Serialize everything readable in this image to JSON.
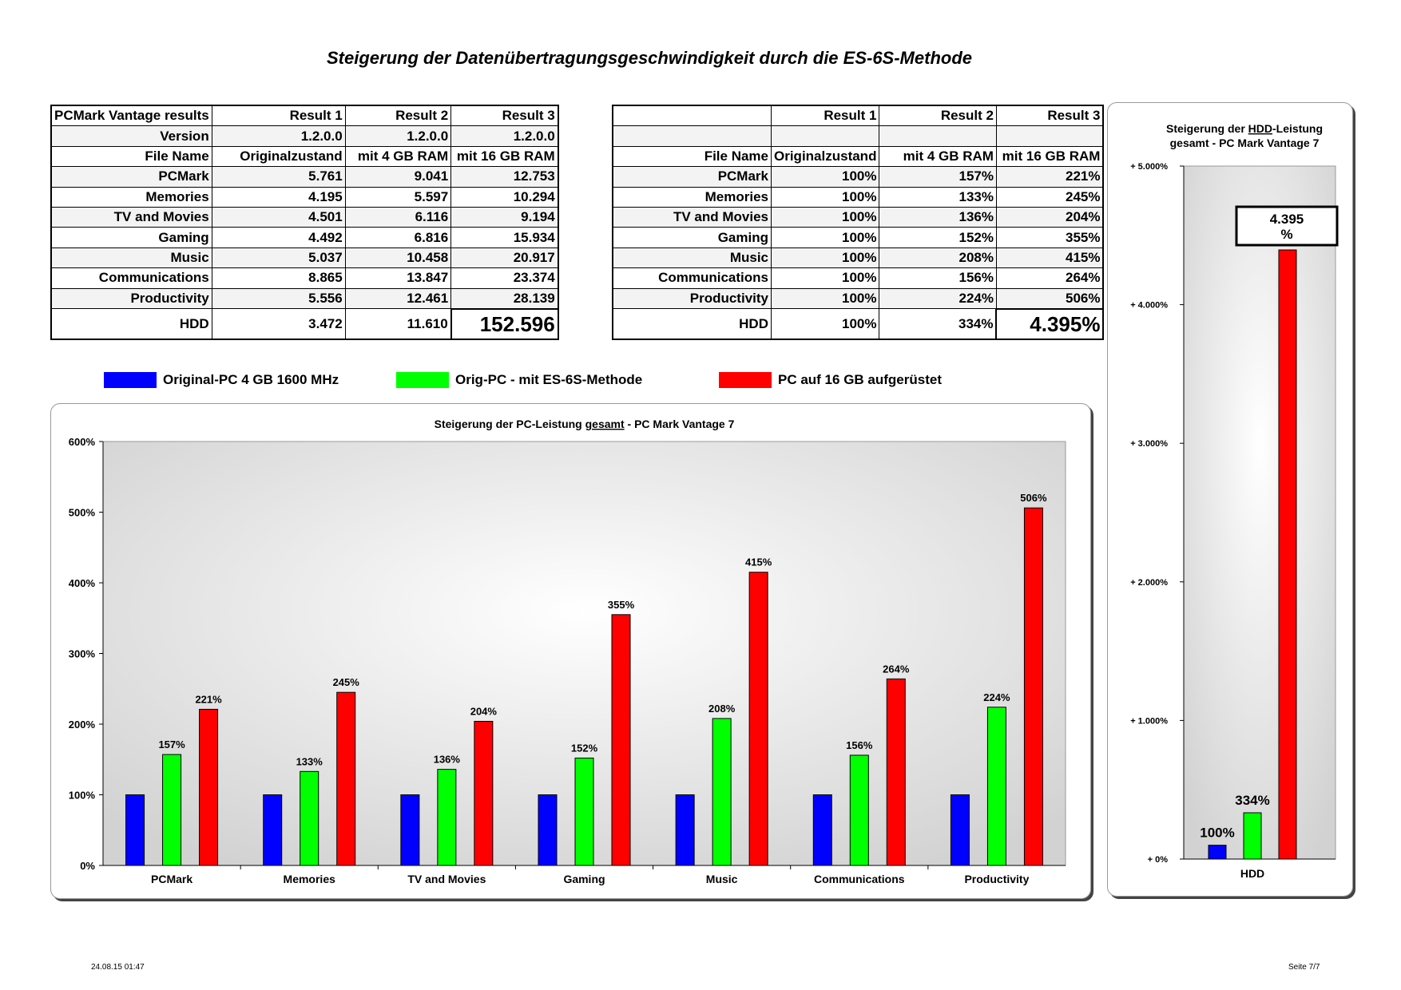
{
  "page_title": "Steigerung der Datenübertragungsgeschwindigkeit durch die ES-6S-Methode",
  "table_abs": {
    "header": [
      "PCMark Vantage results",
      "Result 1",
      "Result 2",
      "Result 3"
    ],
    "rows": [
      [
        "Version",
        "1.2.0.0",
        "1.2.0.0",
        "1.2.0.0"
      ],
      [
        "File Name",
        "Originalzustand",
        "mit 4 GB RAM",
        "mit 16 GB RAM"
      ],
      [
        "PCMark",
        "5.761",
        "9.041",
        "12.753"
      ],
      [
        "Memories",
        "4.195",
        "5.597",
        "10.294"
      ],
      [
        "TV and Movies",
        "4.501",
        "6.116",
        "9.194"
      ],
      [
        "Gaming",
        "4.492",
        "6.816",
        "15.934"
      ],
      [
        "Music",
        "5.037",
        "10.458",
        "20.917"
      ],
      [
        "Communications",
        "8.865",
        "13.847",
        "23.374"
      ],
      [
        "Productivity",
        "5.556",
        "12.461",
        "28.139"
      ],
      [
        "HDD",
        "3.472",
        "11.610",
        "152.596"
      ]
    ]
  },
  "table_pct": {
    "header": [
      "",
      "Result 1",
      "Result 2",
      "Result 3"
    ],
    "rows": [
      [
        "",
        "",
        "",
        ""
      ],
      [
        "File Name",
        "Originalzustand",
        "mit 4 GB RAM",
        "mit 16 GB RAM"
      ],
      [
        "PCMark",
        "100%",
        "157%",
        "221%"
      ],
      [
        "Memories",
        "100%",
        "133%",
        "245%"
      ],
      [
        "TV and Movies",
        "100%",
        "136%",
        "204%"
      ],
      [
        "Gaming",
        "100%",
        "152%",
        "355%"
      ],
      [
        "Music",
        "100%",
        "208%",
        "415%"
      ],
      [
        "Communications",
        "100%",
        "156%",
        "264%"
      ],
      [
        "Productivity",
        "100%",
        "224%",
        "506%"
      ],
      [
        "HDD",
        "100%",
        "334%",
        "4.395%"
      ]
    ]
  },
  "legend": [
    {
      "label": "Original-PC 4 GB 1600 MHz",
      "color": "#0000ff"
    },
    {
      "label": "Orig-PC - mit ES-6S-Methode",
      "color": "#00ff00"
    },
    {
      "label": "PC auf 16 GB aufgerüstet",
      "color": "#ff0000"
    }
  ],
  "chart_data": [
    {
      "type": "bar",
      "title_parts": [
        "Steigerung der PC-Leistung ",
        "gesamt",
        " - PC Mark Vantage 7"
      ],
      "categories": [
        "PCMark",
        "Memories",
        "TV and Movies",
        "Gaming",
        "Music",
        "Communications",
        "Productivity"
      ],
      "series": [
        {
          "name": "Original-PC 4 GB 1600 MHz",
          "color": "#0000ff",
          "values": [
            100,
            100,
            100,
            100,
            100,
            100,
            100
          ],
          "labels": [
            "",
            "",
            "",
            "",
            "",
            "",
            ""
          ]
        },
        {
          "name": "Orig-PC - mit ES-6S-Methode",
          "color": "#00ff00",
          "values": [
            157,
            133,
            136,
            152,
            208,
            156,
            224
          ],
          "labels": [
            "157%",
            "133%",
            "136%",
            "152%",
            "208%",
            "156%",
            "224%"
          ]
        },
        {
          "name": "PC auf 16 GB aufgerüstet",
          "color": "#ff0000",
          "values": [
            221,
            245,
            204,
            355,
            415,
            264,
            506
          ],
          "labels": [
            "221%",
            "245%",
            "204%",
            "355%",
            "415%",
            "264%",
            "506%"
          ]
        }
      ],
      "ylim": [
        0,
        600
      ],
      "yticks": [
        0,
        100,
        200,
        300,
        400,
        500,
        600
      ],
      "ytick_labels": [
        "0%",
        "100%",
        "200%",
        "300%",
        "400%",
        "500%",
        "600%"
      ]
    },
    {
      "type": "bar",
      "title_parts": [
        "Steigerung der ",
        "HDD",
        "-Leistung",
        "gesamt - PC Mark Vantage 7"
      ],
      "categories": [
        "HDD"
      ],
      "series": [
        {
          "name": "Original-PC 4 GB 1600 MHz",
          "color": "#0000ff",
          "values": [
            100
          ],
          "labels": [
            "100%"
          ]
        },
        {
          "name": "Orig-PC - mit ES-6S-Methode",
          "color": "#00ff00",
          "values": [
            334
          ],
          "labels": [
            "334%"
          ]
        },
        {
          "name": "PC auf 16 GB aufgerüstet",
          "color": "#ff0000",
          "values": [
            4395
          ],
          "labels": [
            ""
          ]
        }
      ],
      "callout": [
        "4.395",
        "%"
      ],
      "ylim": [
        0,
        5000
      ],
      "yticks": [
        0,
        1000,
        2000,
        3000,
        4000,
        5000
      ],
      "ytick_labels": [
        "+ 0%",
        "+ 1.000%",
        "+ 2.000%",
        "+ 3.000%",
        "+ 4.000%",
        "+ 5.000%"
      ]
    }
  ],
  "footer": {
    "date": "24.08.15 01:47",
    "page": "Seite 7/7"
  }
}
